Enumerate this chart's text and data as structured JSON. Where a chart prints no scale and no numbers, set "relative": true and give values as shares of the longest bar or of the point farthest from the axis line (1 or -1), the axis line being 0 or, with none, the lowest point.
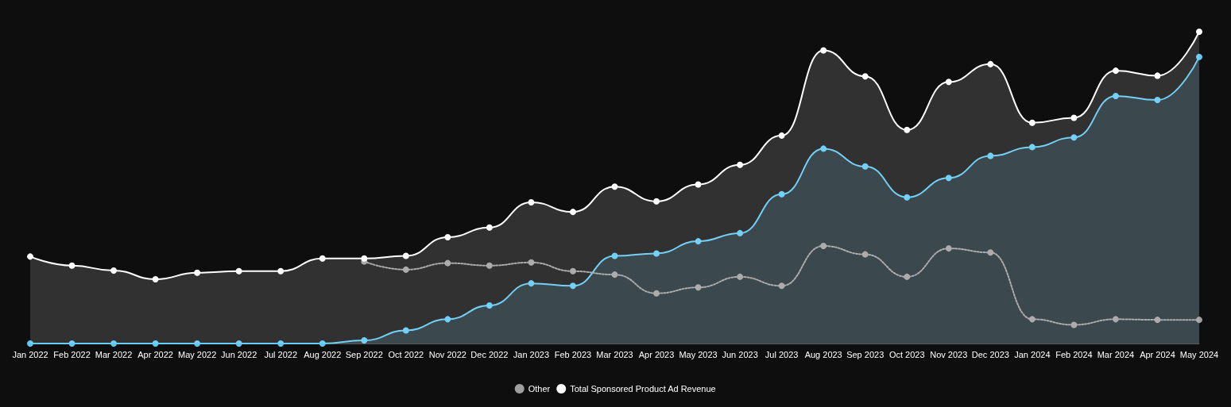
{
  "chart_data": {
    "type": "area",
    "relative": true,
    "categories": [
      "Jan 2022",
      "Feb 2022",
      "Mar 2022",
      "Apr 2022",
      "May 2022",
      "Jun 2022",
      "Jul 2022",
      "Aug 2022",
      "Sep 2022",
      "Oct 2022",
      "Nov 2022",
      "Dec 2022",
      "Jan 2023",
      "Feb 2023",
      "Mar 2023",
      "Apr 2023",
      "May 2023",
      "Jun 2023",
      "Jul 2023",
      "Aug 2023",
      "Sep 2023",
      "Oct 2023",
      "Nov 2023",
      "Dec 2023",
      "Jan 2024",
      "Feb 2024",
      "Mar 2024",
      "Apr 2024",
      "May 2024"
    ],
    "series": [
      {
        "type": "area",
        "color": "#5bc8f5",
        "values": [
          0,
          0,
          0,
          0,
          0,
          0,
          0,
          0,
          0.01,
          0.042,
          0.078,
          0.122,
          0.193,
          0.185,
          0.281,
          0.289,
          0.328,
          0.354,
          0.479,
          0.625,
          0.568,
          0.469,
          0.531,
          0.602,
          0.63,
          0.661,
          0.794,
          0.781,
          0.919
        ]
      },
      {
        "type": "line",
        "name": "Other",
        "color": "#9e9e9e",
        "line_style": "dotted",
        "values": [
          null,
          null,
          null,
          null,
          null,
          null,
          null,
          null,
          0.263,
          0.237,
          0.258,
          0.25,
          0.26,
          0.232,
          0.221,
          0.161,
          0.18,
          0.214,
          0.185,
          0.313,
          0.286,
          0.214,
          0.305,
          0.292,
          0.078,
          0.06,
          0.078,
          0.076,
          0.076
        ]
      },
      {
        "type": "area",
        "name": "Total Sponsored Product Ad Revenue",
        "color": "#ffffff",
        "values": [
          0.279,
          0.25,
          0.234,
          0.206,
          0.227,
          0.232,
          0.232,
          0.273,
          0.273,
          0.281,
          0.341,
          0.372,
          0.453,
          0.422,
          0.503,
          0.456,
          0.51,
          0.573,
          0.667,
          0.94,
          0.857,
          0.685,
          0.839,
          0.896,
          0.708,
          0.724,
          0.875,
          0.859,
          1
        ]
      }
    ],
    "marker": "circle",
    "line_style": "solid",
    "grid": false,
    "legend": "bottom"
  }
}
